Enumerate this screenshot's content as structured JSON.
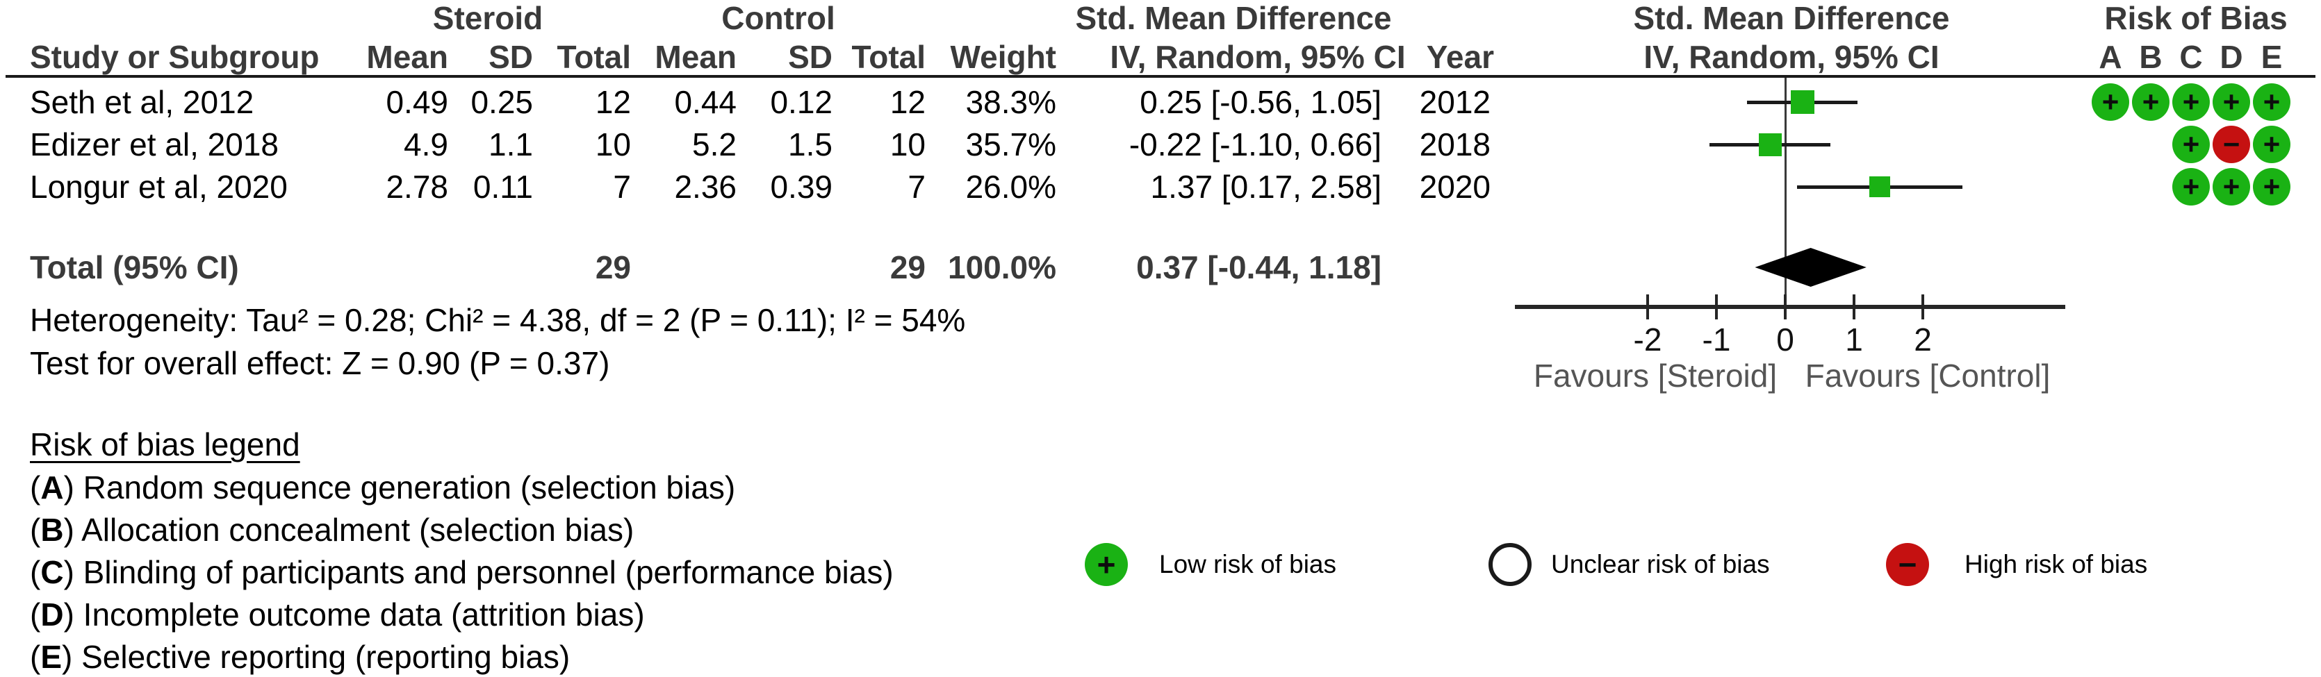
{
  "group_headers": {
    "steroid": "Steroid",
    "control": "Control",
    "smd_table": "Std. Mean Difference",
    "smd_plot": "Std. Mean Difference",
    "risk_of_bias": "Risk of Bias"
  },
  "columns": {
    "study": "Study or Subgroup",
    "mean": "Mean",
    "sd": "SD",
    "total": "Total",
    "weight": "Weight",
    "ci": "IV, Random, 95% CI",
    "year": "Year"
  },
  "rob_columns": [
    "A",
    "B",
    "C",
    "D",
    "E"
  ],
  "studies": [
    {
      "name": "Seth et al, 2012",
      "mean_t": "0.49",
      "sd_t": "0.25",
      "n_t": "12",
      "mean_c": "0.44",
      "sd_c": "0.12",
      "n_c": "12",
      "weight": "38.3%",
      "ci_text": "0.25 [-0.56, 1.05]",
      "year": "2012",
      "est": 0.25,
      "lo": -0.56,
      "hi": 1.05,
      "weight_pct": 38.3,
      "rob": {
        "A": "low",
        "B": "low",
        "C": "low",
        "D": "low",
        "E": "low"
      }
    },
    {
      "name": "Edizer et al, 2018",
      "mean_t": "4.9",
      "sd_t": "1.1",
      "n_t": "10",
      "mean_c": "5.2",
      "sd_c": "1.5",
      "n_c": "10",
      "weight": "35.7%",
      "ci_text": "-0.22 [-1.10, 0.66]",
      "year": "2018",
      "est": -0.22,
      "lo": -1.1,
      "hi": 0.66,
      "weight_pct": 35.7,
      "rob": {
        "C": "low",
        "D": "high",
        "E": "low"
      }
    },
    {
      "name": "Longur et al, 2020",
      "mean_t": "2.78",
      "sd_t": "0.11",
      "n_t": "7",
      "mean_c": "2.36",
      "sd_c": "0.39",
      "n_c": "7",
      "weight": "26.0%",
      "ci_text": "1.37 [0.17, 2.58]",
      "year": "2020",
      "est": 1.37,
      "lo": 0.17,
      "hi": 2.58,
      "weight_pct": 26.0,
      "rob": {
        "C": "low",
        "D": "low",
        "E": "low"
      }
    }
  ],
  "total_row": {
    "label": "Total (95% CI)",
    "n_t": "29",
    "n_c": "29",
    "weight": "100.0%",
    "ci_text": "0.37 [-0.44, 1.18]",
    "est": 0.37,
    "lo": -0.44,
    "hi": 1.18
  },
  "heterogeneity": "Heterogeneity: Tau² = 0.28; Chi² = 4.38, df = 2 (P = 0.11); I² = 54%",
  "overall_effect": "Test for overall effect: Z = 0.90 (P = 0.37)",
  "axis": {
    "ticks": [
      "-2",
      "-1",
      "0",
      "1",
      "2"
    ],
    "tick_values": [
      -2,
      -1,
      0,
      1,
      2
    ],
    "favours_left": "Favours [Steroid]",
    "favours_right": "Favours [Control]"
  },
  "rob_legend": {
    "heading": "Risk of bias legend",
    "items": [
      {
        "key": "A",
        "text": "Random sequence generation (selection bias)"
      },
      {
        "key": "B",
        "text": "Allocation concealment (selection bias)"
      },
      {
        "key": "C",
        "text": "Blinding of participants and personnel (performance bias)"
      },
      {
        "key": "D",
        "text": "Incomplete outcome data (attrition bias)"
      },
      {
        "key": "E",
        "text": "Selective reporting (reporting bias)"
      }
    ]
  },
  "key_legend": [
    {
      "type": "low",
      "symbol": "+",
      "label": "Low risk of bias"
    },
    {
      "type": "unclear",
      "symbol": "",
      "label": "Unclear risk of bias"
    },
    {
      "type": "high",
      "symbol": "−",
      "label": "High risk of bias"
    }
  ],
  "colors": {
    "low_risk": "#1ab214",
    "high_risk": "#c51111",
    "marker_green": "#1ab214",
    "diamond_black": "#000000",
    "header_gray": "#3a3a3a",
    "favours_gray": "#555555"
  },
  "chart_data": {
    "type": "forest",
    "title": "Std. Mean Difference, IV, Random, 95% CI",
    "groups": [
      "Steroid",
      "Control"
    ],
    "studies": [
      {
        "name": "Seth et al, 2012",
        "est": 0.25,
        "ci": [
          -0.56,
          1.05
        ],
        "weight_pct": 38.3,
        "year": 2012
      },
      {
        "name": "Edizer et al, 2018",
        "est": -0.22,
        "ci": [
          -1.1,
          0.66
        ],
        "weight_pct": 35.7,
        "year": 2018
      },
      {
        "name": "Longur et al, 2020",
        "est": 1.37,
        "ci": [
          0.17,
          2.58
        ],
        "weight_pct": 26.0,
        "year": 2020
      }
    ],
    "total": {
      "est": 0.37,
      "ci": [
        -0.44,
        1.18
      ],
      "n_steroid": 29,
      "n_control": 29,
      "weight_pct": 100.0
    },
    "heterogeneity": {
      "tau2": 0.28,
      "chi2": 4.38,
      "df": 2,
      "p": 0.11,
      "i2_pct": 54
    },
    "overall_effect": {
      "z": 0.9,
      "p": 0.37
    },
    "xticks": [
      -2,
      -1,
      0,
      1,
      2
    ],
    "xlim": [
      -3.9,
      4.1
    ],
    "xlabel_left": "Favours [Steroid]",
    "xlabel_right": "Favours [Control]"
  }
}
